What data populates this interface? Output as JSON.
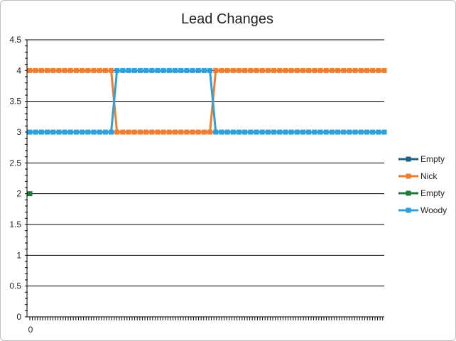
{
  "chart_data": {
    "type": "line",
    "title": "Lead Changes",
    "xlabel": "",
    "ylabel": "",
    "ylim": [
      0,
      4.5
    ],
    "yticks": [
      0,
      0.5,
      1,
      1.5,
      2,
      2.5,
      3,
      3.5,
      4,
      4.5
    ],
    "ytick_labels": [
      "0",
      "0.5",
      "1",
      "1.5",
      "2",
      "2.5",
      "3",
      "3.5",
      "4",
      "4.5"
    ],
    "x_label_shown": "0",
    "grid": true,
    "legend_position": "right",
    "segments": [
      {
        "start": 0,
        "length": 15,
        "leader": "Nick"
      },
      {
        "start": 15,
        "length": 17,
        "leader": "Woody"
      },
      {
        "start": 32,
        "length": 30,
        "leader": "Nick"
      }
    ],
    "leader_value": 4,
    "trailer_value": 3,
    "total_points": 62,
    "series": [
      {
        "name": "Empty",
        "color": "#1f5f7f",
        "values": []
      },
      {
        "name": "Nick",
        "color": "#ed7d31"
      },
      {
        "name": "Empty",
        "color": "#217a3b",
        "values": [
          2
        ]
      },
      {
        "name": "Woody",
        "color": "#2e9fd8"
      }
    ]
  }
}
